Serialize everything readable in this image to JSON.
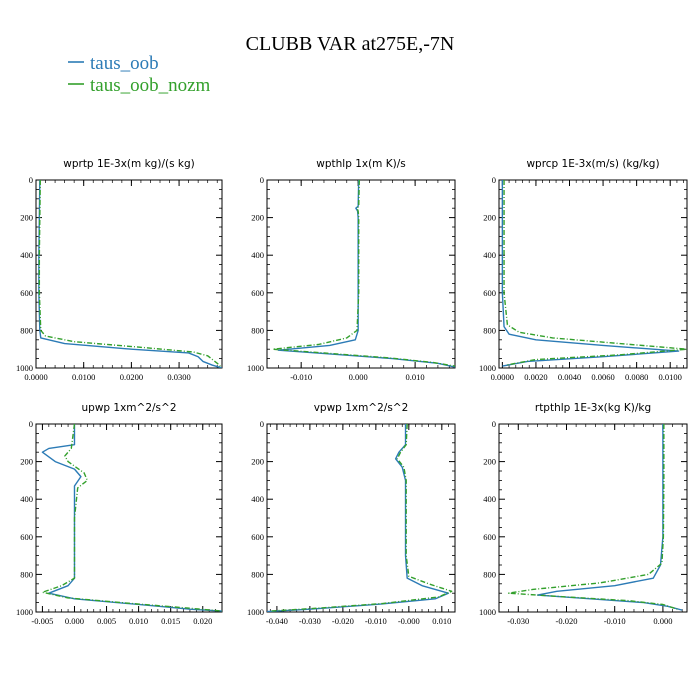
{
  "figure": {
    "title": "CLUBB VAR at275E,-7N"
  },
  "legend": [
    {
      "name": "taus_oob",
      "color": "#2c7bb6"
    },
    {
      "name": "taus_oob_nozm",
      "color": "#33a02c"
    }
  ],
  "chart_data": [
    {
      "type": "line",
      "title": "wprtp  1E-3x(m kg)/(s kg)",
      "ylim": [
        1000,
        0
      ],
      "xlim": [
        0,
        0.039
      ],
      "xticks": [
        0,
        0.01,
        0.02,
        0.03
      ],
      "xtick_labels": [
        "0.0000",
        "0.0100",
        "0.0200",
        "0.0300"
      ],
      "yticks": [
        0,
        200,
        400,
        600,
        800,
        1000
      ],
      "ytick_labels": [
        "0",
        "200",
        "400",
        "600",
        "800",
        "1000"
      ],
      "grid": false,
      "series": [
        {
          "name": "taus_oob",
          "points": [
            [
              0.0008,
              0
            ],
            [
              0.0007,
              200
            ],
            [
              0.0006,
              400
            ],
            [
              0.0006,
              600
            ],
            [
              0.0008,
              800
            ],
            [
              0.001,
              840
            ],
            [
              0.006,
              870
            ],
            [
              0.02,
              900
            ],
            [
              0.032,
              920
            ],
            [
              0.034,
              940
            ],
            [
              0.035,
              965
            ],
            [
              0.037,
              985
            ],
            [
              0.039,
              1000
            ]
          ]
        },
        {
          "name": "taus_oob_nozm",
          "points": [
            [
              0.0009,
              0
            ],
            [
              0.0008,
              200
            ],
            [
              0.0007,
              400
            ],
            [
              0.0007,
              600
            ],
            [
              0.001,
              800
            ],
            [
              0.002,
              830
            ],
            [
              0.008,
              860
            ],
            [
              0.022,
              890
            ],
            [
              0.033,
              915
            ],
            [
              0.036,
              935
            ],
            [
              0.037,
              955
            ],
            [
              0.038,
              975
            ],
            [
              0.039,
              1000
            ]
          ]
        }
      ]
    },
    {
      "type": "line",
      "title": "wpthlp  1x(m K)/s",
      "ylim": [
        1000,
        0
      ],
      "xlim": [
        -0.016,
        0.017
      ],
      "xticks": [
        -0.01,
        0,
        0.01
      ],
      "xtick_labels": [
        "-0.010",
        "0.000",
        "0.010"
      ],
      "yticks": [
        0,
        200,
        400,
        600,
        800,
        1000
      ],
      "ytick_labels": [
        "0",
        "200",
        "400",
        "600",
        "800",
        "1000"
      ],
      "grid": false,
      "series": [
        {
          "name": "taus_oob",
          "points": [
            [
              0.0001,
              0
            ],
            [
              0.0,
              140
            ],
            [
              -0.0004,
              150
            ],
            [
              -0.0001,
              165
            ],
            [
              0.0,
              200
            ],
            [
              0.0,
              400
            ],
            [
              0.0,
              600
            ],
            [
              0.0,
              800
            ],
            [
              -0.0005,
              850
            ],
            [
              -0.005,
              880
            ],
            [
              -0.014,
              905
            ],
            [
              -0.005,
              925
            ],
            [
              0.006,
              950
            ],
            [
              0.014,
              975
            ],
            [
              0.017,
              995
            ]
          ]
        },
        {
          "name": "taus_oob_nozm",
          "points": [
            [
              0.0002,
              0
            ],
            [
              0.0001,
              140
            ],
            [
              -0.0002,
              150
            ],
            [
              0.0,
              165
            ],
            [
              0.0001,
              200
            ],
            [
              0.0001,
              400
            ],
            [
              0.0001,
              600
            ],
            [
              -0.0002,
              800
            ],
            [
              -0.002,
              840
            ],
            [
              -0.007,
              875
            ],
            [
              -0.015,
              900
            ],
            [
              -0.006,
              920
            ],
            [
              0.005,
              945
            ],
            [
              0.013,
              970
            ],
            [
              0.017,
              990
            ]
          ]
        }
      ]
    },
    {
      "type": "line",
      "title": "wprcp  1E-3x(m/s) (kg/kg)",
      "ylim": [
        1000,
        0
      ],
      "xlim": [
        -0.0002,
        0.011
      ],
      "xticks": [
        0,
        0.002,
        0.004,
        0.006,
        0.008,
        0.01
      ],
      "xtick_labels": [
        "0.0000",
        "0.0020",
        "0.0040",
        "0.0060",
        "0.0080",
        "0.0100"
      ],
      "yticks": [
        0,
        200,
        400,
        600,
        800,
        1000
      ],
      "ytick_labels": [
        "0",
        "200",
        "400",
        "600",
        "800",
        "1000"
      ],
      "grid": false,
      "series": [
        {
          "name": "taus_oob",
          "points": [
            [
              0.0,
              0
            ],
            [
              0.0,
              600
            ],
            [
              0.0001,
              780
            ],
            [
              0.0004,
              820
            ],
            [
              0.002,
              850
            ],
            [
              0.006,
              880
            ],
            [
              0.0105,
              910
            ],
            [
              0.006,
              940
            ],
            [
              0.0015,
              965
            ],
            [
              0.0,
              990
            ]
          ]
        },
        {
          "name": "taus_oob_nozm",
          "points": [
            [
              0.0001,
              0
            ],
            [
              0.0001,
              600
            ],
            [
              0.0003,
              770
            ],
            [
              0.001,
              810
            ],
            [
              0.003,
              840
            ],
            [
              0.007,
              870
            ],
            [
              0.011,
              900
            ],
            [
              0.007,
              930
            ],
            [
              0.002,
              955
            ],
            [
              0.0002,
              985
            ]
          ]
        }
      ]
    },
    {
      "type": "line",
      "title": "upwp  1xm^2/s^2",
      "ylim": [
        1000,
        0
      ],
      "xlim": [
        -0.006,
        0.023
      ],
      "xticks": [
        -0.005,
        0,
        0.005,
        0.01,
        0.015,
        0.02
      ],
      "xtick_labels": [
        "-0.005",
        "0.000",
        "0.005",
        "0.010",
        "0.015",
        "0.020"
      ],
      "yticks": [
        0,
        200,
        400,
        600,
        800,
        1000
      ],
      "ytick_labels": [
        "0",
        "200",
        "400",
        "600",
        "800",
        "1000"
      ],
      "grid": false,
      "series": [
        {
          "name": "taus_oob",
          "points": [
            [
              0.0,
              0
            ],
            [
              0.0,
              110
            ],
            [
              -0.004,
              130
            ],
            [
              -0.005,
              150
            ],
            [
              -0.003,
              200
            ],
            [
              0.0,
              240
            ],
            [
              0.001,
              280
            ],
            [
              0.0,
              330
            ],
            [
              0.0,
              500
            ],
            [
              0.0,
              700
            ],
            [
              0.0,
              820
            ],
            [
              -0.001,
              860
            ],
            [
              -0.004,
              900
            ],
            [
              0.0,
              930
            ],
            [
              0.01,
              960
            ],
            [
              0.018,
              985
            ],
            [
              0.023,
              995
            ]
          ]
        },
        {
          "name": "taus_oob_nozm",
          "points": [
            [
              0.0,
              0
            ],
            [
              -0.0005,
              130
            ],
            [
              -0.0015,
              170
            ],
            [
              -0.001,
              200
            ],
            [
              0.0015,
              260
            ],
            [
              0.002,
              300
            ],
            [
              0.0005,
              340
            ],
            [
              0.0,
              500
            ],
            [
              0.0,
              700
            ],
            [
              0.0,
              820
            ],
            [
              -0.002,
              860
            ],
            [
              -0.005,
              895
            ],
            [
              -0.001,
              925
            ],
            [
              0.009,
              955
            ],
            [
              0.018,
              980
            ],
            [
              0.023,
              995
            ]
          ]
        }
      ]
    },
    {
      "type": "line",
      "title": "vpwp  1xm^2/s^2",
      "ylim": [
        1000,
        0
      ],
      "xlim": [
        -0.043,
        0.014
      ],
      "xticks": [
        -0.04,
        -0.03,
        -0.02,
        -0.01,
        0,
        0.01
      ],
      "xtick_labels": [
        "-0.040",
        "-0.030",
        "-0.020",
        "-0.010",
        "-0.000",
        "0.010"
      ],
      "yticks": [
        0,
        200,
        400,
        600,
        800,
        1000
      ],
      "ytick_labels": [
        "0",
        "200",
        "400",
        "600",
        "800",
        "1000"
      ],
      "grid": false,
      "series": [
        {
          "name": "taus_oob",
          "points": [
            [
              -0.001,
              0
            ],
            [
              -0.001,
              110
            ],
            [
              -0.003,
              150
            ],
            [
              -0.004,
              185
            ],
            [
              -0.002,
              230
            ],
            [
              -0.001,
              300
            ],
            [
              -0.001,
              500
            ],
            [
              -0.001,
              700
            ],
            [
              -0.0005,
              820
            ],
            [
              0.004,
              860
            ],
            [
              0.012,
              900
            ],
            [
              0.008,
              930
            ],
            [
              -0.01,
              960
            ],
            [
              -0.03,
              985
            ],
            [
              -0.043,
              998
            ]
          ]
        },
        {
          "name": "taus_oob_nozm",
          "points": [
            [
              -0.0005,
              0
            ],
            [
              -0.0008,
              110
            ],
            [
              -0.0025,
              150
            ],
            [
              -0.0035,
              185
            ],
            [
              -0.0015,
              230
            ],
            [
              -0.0008,
              300
            ],
            [
              -0.0008,
              500
            ],
            [
              -0.0008,
              700
            ],
            [
              0.0,
              810
            ],
            [
              0.006,
              850
            ],
            [
              0.013,
              890
            ],
            [
              0.009,
              920
            ],
            [
              -0.008,
              955
            ],
            [
              -0.028,
              980
            ],
            [
              -0.042,
              995
            ]
          ]
        }
      ]
    },
    {
      "type": "line",
      "title": "rtpthlp  1E-3x(kg K)/kg",
      "ylim": [
        1000,
        0
      ],
      "xlim": [
        -0.034,
        0.005
      ],
      "xticks": [
        -0.03,
        -0.02,
        -0.01,
        0
      ],
      "xtick_labels": [
        "-0.030",
        "-0.020",
        "-0.010",
        "0.000"
      ],
      "yticks": [
        0,
        200,
        400,
        600,
        800,
        1000
      ],
      "ytick_labels": [
        "0",
        "200",
        "400",
        "600",
        "800",
        "1000"
      ],
      "grid": false,
      "series": [
        {
          "name": "taus_oob",
          "points": [
            [
              0.0,
              0
            ],
            [
              0.0,
              300
            ],
            [
              0.0,
              600
            ],
            [
              -0.0005,
              750
            ],
            [
              -0.002,
              820
            ],
            [
              -0.01,
              860
            ],
            [
              -0.022,
              890
            ],
            [
              -0.026,
              910
            ],
            [
              -0.015,
              930
            ],
            [
              -0.004,
              950
            ],
            [
              0.001,
              970
            ],
            [
              0.004,
              990
            ]
          ]
        },
        {
          "name": "taus_oob_nozm",
          "points": [
            [
              0.0002,
              0
            ],
            [
              0.0002,
              300
            ],
            [
              0.0001,
              600
            ],
            [
              -0.0002,
              740
            ],
            [
              -0.003,
              800
            ],
            [
              -0.013,
              845
            ],
            [
              -0.027,
              880
            ],
            [
              -0.032,
              900
            ],
            [
              -0.02,
              920
            ],
            [
              -0.007,
              940
            ],
            [
              0.0,
              960
            ],
            [
              0.003,
              985
            ]
          ]
        }
      ]
    }
  ]
}
